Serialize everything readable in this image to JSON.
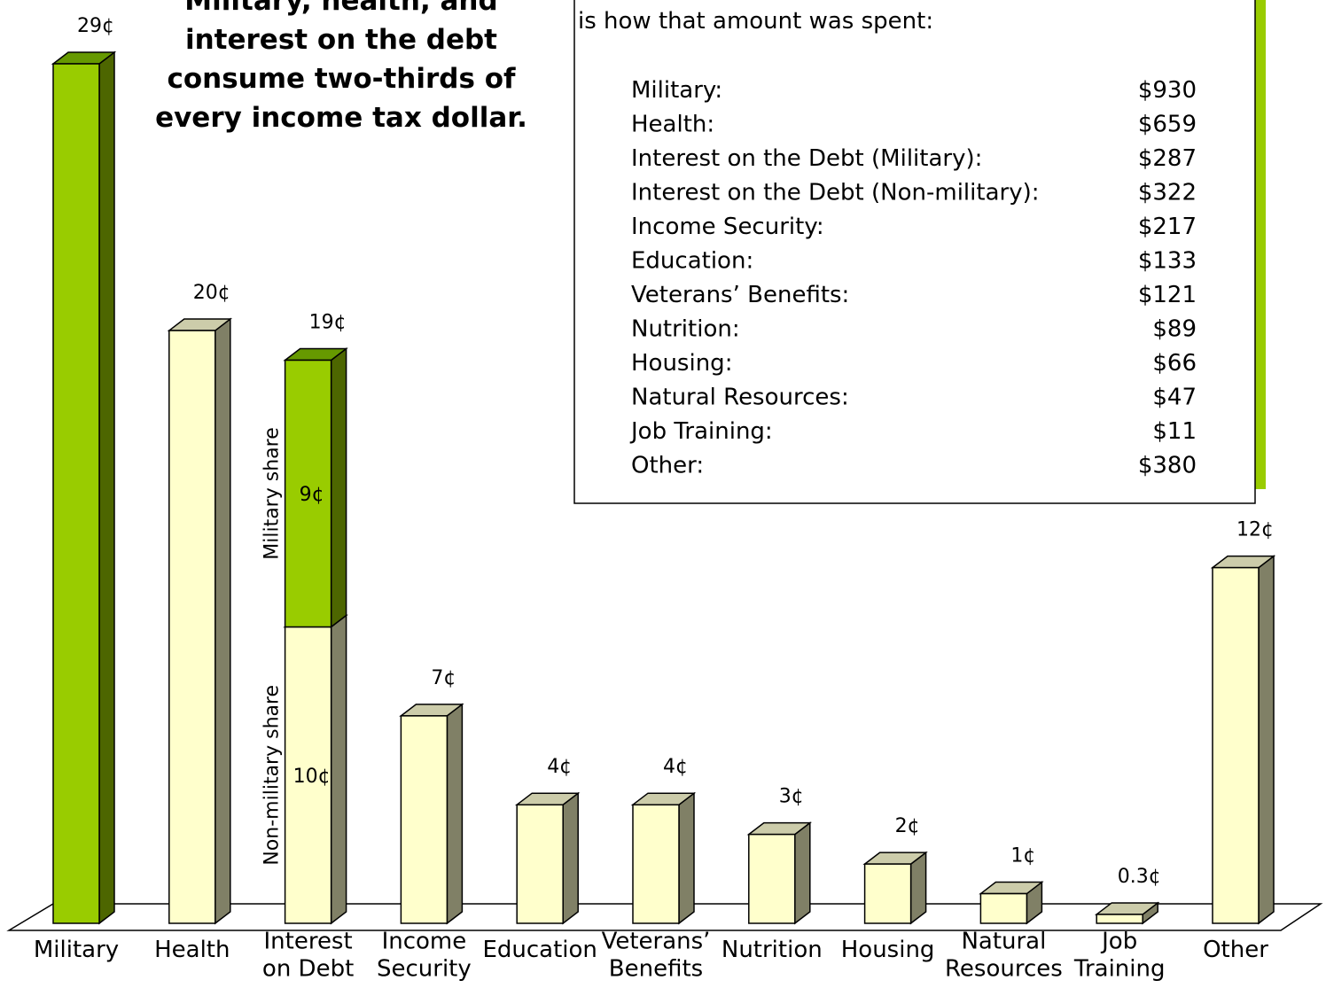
{
  "chart_data": {
    "type": "bar3d",
    "title": "Military, health, and\ninterest on the debt\nconsume two-thirds of\nevery income tax dollar.",
    "categories": [
      "Military",
      "Health",
      "Interest\non Debt",
      "Income\nSecurity",
      "Education",
      "Veterans’\nBenefits",
      "Nutrition",
      "Housing",
      "Natural\nResources",
      "Job\nTraining",
      "Other"
    ],
    "series": [
      {
        "name": "Non-military share",
        "color": "#ffffcc",
        "values": [
          null,
          20,
          10,
          7,
          4,
          4,
          3,
          2,
          1,
          0.3,
          12
        ],
        "value_labels": [
          null,
          null,
          "10¢",
          null,
          null,
          null,
          null,
          null,
          null,
          null,
          null
        ]
      },
      {
        "name": "Military share",
        "color": "#99cc00",
        "values": [
          29,
          null,
          9,
          null,
          null,
          null,
          null,
          null,
          null,
          null,
          null
        ],
        "value_labels": [
          null,
          null,
          "9¢",
          null,
          null,
          null,
          null,
          null,
          null,
          null,
          null
        ]
      }
    ],
    "totals": [
      29,
      20,
      19,
      7,
      4,
      4,
      3,
      2,
      1,
      0.3,
      12
    ],
    "total_labels": [
      "29¢",
      "20¢",
      "19¢",
      "7¢",
      "4¢",
      "4¢",
      "3¢",
      "2¢",
      "1¢",
      "0.3¢",
      "12¢"
    ]
  },
  "box": {
    "note": "is how that amount was spent:",
    "rows": [
      [
        "Military:",
        "$930"
      ],
      [
        "Health:",
        "$659"
      ],
      [
        "Interest on the Debt (Military):",
        "$287"
      ],
      [
        "Interest on the Debt (Non-military):",
        "$322"
      ],
      [
        "Income Security:",
        "$217"
      ],
      [
        "Education:",
        "$133"
      ],
      [
        "Veterans’ Benefits:",
        "$121"
      ],
      [
        "Nutrition:",
        "$89"
      ],
      [
        "Housing:",
        "$66"
      ],
      [
        "Natural Resources:",
        "$47"
      ],
      [
        "Job Training:",
        "$11"
      ],
      [
        "Other:",
        "$380"
      ]
    ]
  }
}
